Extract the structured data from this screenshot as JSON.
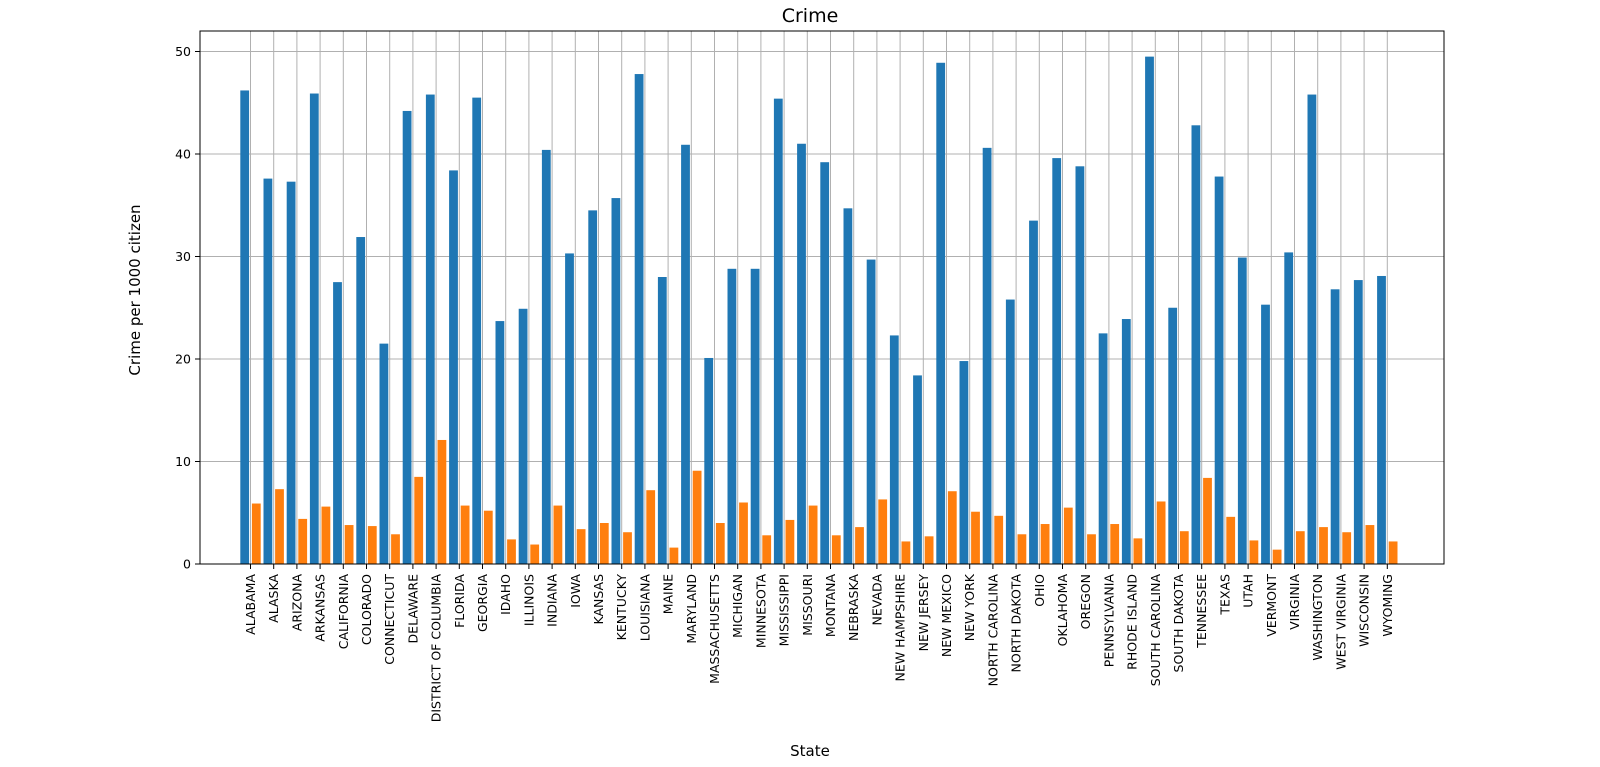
{
  "chart_data": {
    "type": "bar",
    "title": "Crime",
    "xlabel": "State",
    "ylabel": "Crime per 1000 citizen",
    "ylim": [
      0,
      52
    ],
    "yticks": [
      0,
      10,
      20,
      30,
      40,
      50
    ],
    "grid": true,
    "legend": "none",
    "categories": [
      "ALABAMA",
      "ALASKA",
      "ARIZONA",
      "ARKANSAS",
      "CALIFORNIA",
      "COLORADO",
      "CONNECTICUT",
      "DELAWARE",
      "DISTRICT OF COLUMBIA",
      "FLORIDA",
      "GEORGIA",
      "IDAHO",
      "ILLINOIS",
      "INDIANA",
      "IOWA",
      "KANSAS",
      "KENTUCKY",
      "LOUISIANA",
      "MAINE",
      "MARYLAND",
      "MASSACHUSETTS",
      "MICHIGAN",
      "MINNESOTA",
      "MISSISSIPPI",
      "MISSOURI",
      "MONTANA",
      "NEBRASKA",
      "NEVADA",
      "NEW HAMPSHIRE",
      "NEW JERSEY",
      "NEW MEXICO",
      "NEW YORK",
      "NORTH CAROLINA",
      "NORTH DAKOTA",
      "OHIO",
      "OKLAHOMA",
      "OREGON",
      "PENNSYLVANIA",
      "RHODE ISLAND",
      "SOUTH CAROLINA",
      "SOUTH DAKOTA",
      "TENNESSEE",
      "TEXAS",
      "UTAH",
      "VERMONT",
      "VIRGINIA",
      "WASHINGTON",
      "WEST VIRGINIA",
      "WISCONSIN",
      "WYOMING"
    ],
    "series": [
      {
        "color": "#1f77b4",
        "values": [
          46.2,
          37.6,
          37.3,
          45.9,
          27.5,
          31.9,
          21.5,
          44.2,
          45.8,
          38.4,
          45.5,
          23.7,
          24.9,
          40.4,
          30.3,
          34.5,
          35.7,
          47.8,
          28.0,
          40.9,
          20.1,
          28.8,
          28.8,
          45.4,
          41.0,
          39.2,
          34.7,
          29.7,
          22.3,
          18.4,
          48.9,
          19.8,
          40.6,
          25.8,
          33.5,
          39.6,
          38.8,
          22.5,
          23.9,
          49.5,
          25.0,
          42.8,
          37.8,
          29.9,
          25.3,
          30.4,
          45.8,
          26.8,
          27.7,
          28.1
        ]
      },
      {
        "color": "#ff7f0e",
        "values": [
          5.9,
          7.3,
          4.4,
          5.6,
          3.8,
          3.7,
          2.9,
          8.5,
          12.1,
          5.7,
          5.2,
          2.4,
          1.9,
          5.7,
          3.4,
          4.0,
          3.1,
          7.2,
          1.6,
          9.1,
          4.0,
          6.0,
          2.8,
          4.3,
          5.7,
          2.8,
          3.6,
          6.3,
          2.2,
          2.7,
          7.1,
          5.1,
          4.7,
          2.9,
          3.9,
          5.5,
          2.9,
          3.9,
          2.5,
          6.1,
          3.2,
          8.4,
          4.6,
          2.3,
          1.4,
          3.2,
          3.6,
          3.1,
          3.8,
          2.2
        ]
      }
    ]
  }
}
